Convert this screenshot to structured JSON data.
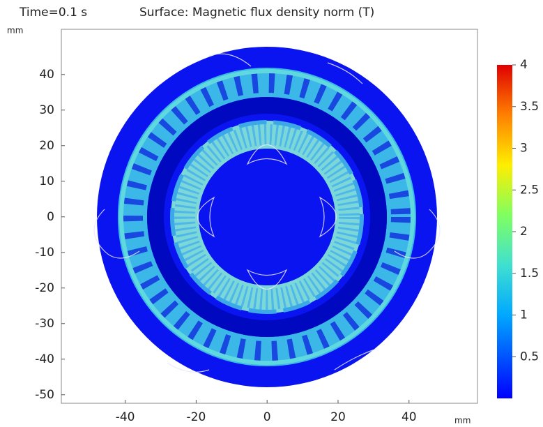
{
  "chart_data": {
    "type": "surface",
    "time_label": "Time=0.1 s",
    "title": "Surface: Magnetic flux density norm (T)",
    "x_unit": "mm",
    "y_unit": "mm",
    "xlim": [
      -58,
      59.3
    ],
    "ylim": [
      -52.4,
      52.7
    ],
    "xticks": [
      -40,
      -20,
      0,
      20,
      40
    ],
    "yticks": [
      -50,
      -40,
      -30,
      -20,
      -10,
      0,
      10,
      20,
      30,
      40
    ],
    "colorbar": {
      "lim": [
        0,
        4
      ],
      "ticks": [
        0.5,
        1,
        1.5,
        2,
        2.5,
        3,
        3.5,
        4
      ]
    }
  }
}
